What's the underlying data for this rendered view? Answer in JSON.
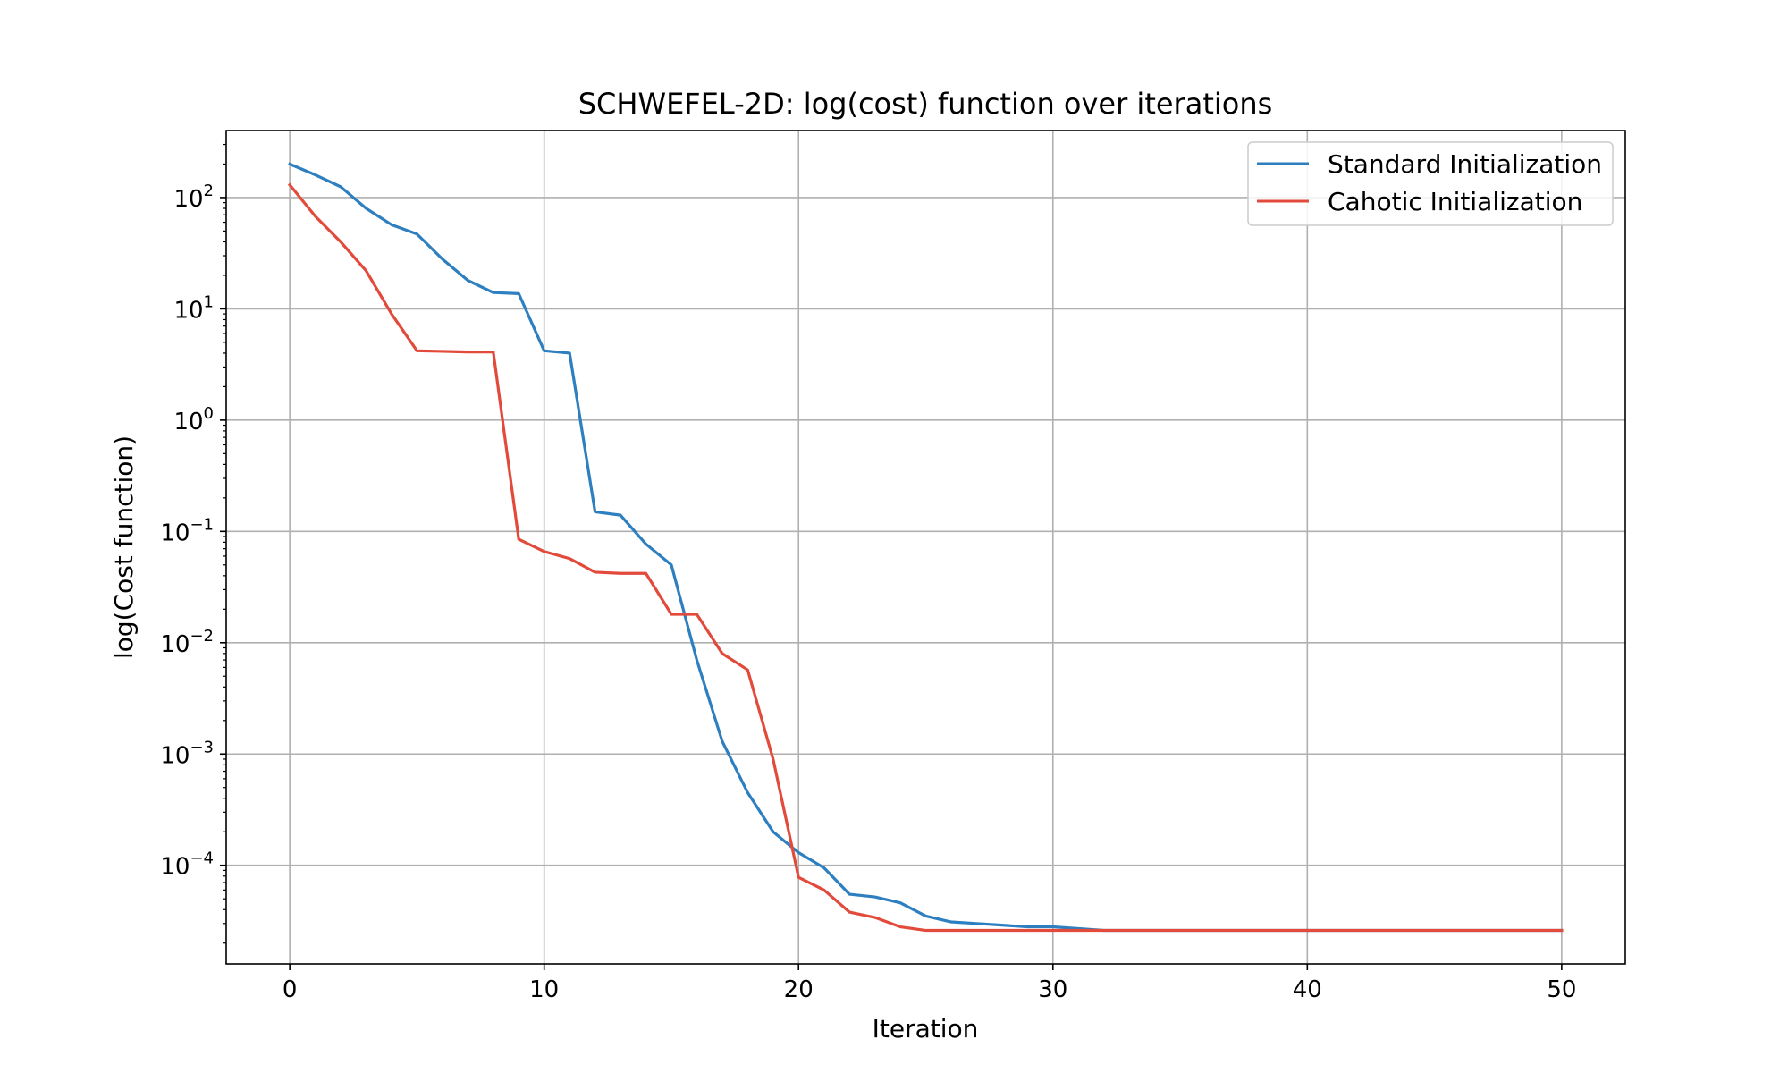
{
  "chart_data": {
    "type": "line",
    "title": "SCHWEFEL-2D: log(cost) function over iterations",
    "xlabel": "Iteration",
    "ylabel": "log(Cost function)",
    "xlim": [
      -2.5,
      52.5
    ],
    "ylim": [
      1.3e-05,
      400
    ],
    "yscale": "log",
    "grid": true,
    "legend_position": "top-right",
    "x_ticks": [
      {
        "value": 0,
        "label": "0"
      },
      {
        "value": 10,
        "label": "10"
      },
      {
        "value": 20,
        "label": "20"
      },
      {
        "value": 30,
        "label": "30"
      },
      {
        "value": 40,
        "label": "40"
      },
      {
        "value": 50,
        "label": "50"
      }
    ],
    "y_ticks": [
      {
        "value": 100,
        "base": "10",
        "exp": "2"
      },
      {
        "value": 10,
        "base": "10",
        "exp": "1"
      },
      {
        "value": 1,
        "base": "10",
        "exp": "0"
      },
      {
        "value": 0.1,
        "base": "10",
        "exp": "−1"
      },
      {
        "value": 0.01,
        "base": "10",
        "exp": "−2"
      },
      {
        "value": 0.001,
        "base": "10",
        "exp": "−3"
      },
      {
        "value": 0.0001,
        "base": "10",
        "exp": "−4"
      }
    ],
    "x": [
      0,
      1,
      2,
      3,
      4,
      5,
      6,
      7,
      8,
      9,
      10,
      11,
      12,
      13,
      14,
      15,
      16,
      17,
      18,
      19,
      20,
      21,
      22,
      23,
      24,
      25,
      26,
      27,
      28,
      29,
      30,
      31,
      32,
      33,
      34,
      35,
      36,
      37,
      38,
      39,
      40,
      41,
      42,
      43,
      44,
      45,
      46,
      47,
      48,
      49,
      50
    ],
    "series": [
      {
        "name": "Standard Initialization",
        "color": "#2e7fbf",
        "values": [
          200,
          160,
          125,
          80,
          57,
          47,
          28,
          18,
          14,
          13.7,
          4.2,
          4.0,
          0.15,
          0.14,
          0.077,
          0.05,
          0.007,
          0.0013,
          0.00045,
          0.0002,
          0.00013,
          9.5e-05,
          5.5e-05,
          5.2e-05,
          4.6e-05,
          3.5e-05,
          3.1e-05,
          3e-05,
          2.9e-05,
          2.8e-05,
          2.8e-05,
          2.7e-05,
          2.6e-05,
          2.6e-05,
          2.6e-05,
          2.6e-05,
          2.6e-05,
          2.6e-05,
          2.6e-05,
          2.6e-05,
          2.6e-05,
          2.6e-05,
          2.6e-05,
          2.6e-05,
          2.6e-05,
          2.6e-05,
          2.6e-05,
          2.6e-05,
          2.6e-05,
          2.6e-05,
          2.6e-05
        ]
      },
      {
        "name": "Cahotic Initialization",
        "color": "#e24a3b",
        "values": [
          130,
          68,
          40,
          22,
          9,
          4.2,
          4.15,
          4.1,
          4.1,
          0.085,
          0.066,
          0.057,
          0.043,
          0.042,
          0.042,
          0.018,
          0.018,
          0.008,
          0.0057,
          0.0009,
          7.8e-05,
          6e-05,
          3.8e-05,
          3.4e-05,
          2.8e-05,
          2.6e-05,
          2.6e-05,
          2.6e-05,
          2.6e-05,
          2.6e-05,
          2.6e-05,
          2.6e-05,
          2.6e-05,
          2.6e-05,
          2.6e-05,
          2.6e-05,
          2.6e-05,
          2.6e-05,
          2.6e-05,
          2.6e-05,
          2.6e-05,
          2.6e-05,
          2.6e-05,
          2.6e-05,
          2.6e-05,
          2.6e-05,
          2.6e-05,
          2.6e-05,
          2.6e-05,
          2.6e-05,
          2.6e-05
        ]
      }
    ]
  }
}
